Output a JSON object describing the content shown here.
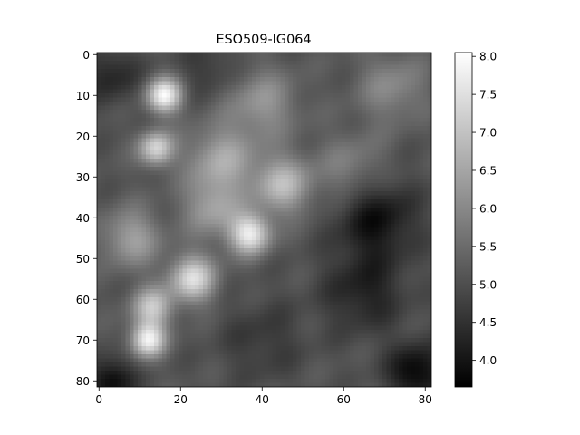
{
  "chart_data": {
    "type": "heatmap",
    "title": "ESO509-IG064",
    "xlabel": "",
    "ylabel": "",
    "grid_size": [
      82,
      82
    ],
    "xlim": [
      -0.5,
      81.5
    ],
    "ylim": [
      81.5,
      -0.5
    ],
    "x_ticks": [
      0,
      20,
      40,
      60,
      80
    ],
    "y_ticks": [
      0,
      10,
      20,
      30,
      40,
      50,
      60,
      70,
      80
    ],
    "x_tick_labels": [
      "0",
      "20",
      "40",
      "60",
      "80"
    ],
    "y_tick_labels": [
      "0",
      "10",
      "20",
      "30",
      "40",
      "50",
      "60",
      "70",
      "80"
    ],
    "colormap": "gray",
    "colorbar": {
      "min": 3.65,
      "max": 8.05,
      "ticks": [
        4.0,
        4.5,
        5.0,
        5.5,
        6.0,
        6.5,
        7.0,
        7.5,
        8.0
      ],
      "tick_labels": [
        "4.0",
        "4.5",
        "5.0",
        "5.5",
        "6.0",
        "6.5",
        "7.0",
        "7.5",
        "8.0"
      ]
    },
    "background_level": 5.1,
    "features": [
      {
        "x": 16,
        "y": 10,
        "sigma": 3.0,
        "value": 7.9
      },
      {
        "x": 14,
        "y": 23,
        "sigma": 3.0,
        "value": 7.3
      },
      {
        "x": 12,
        "y": 70,
        "sigma": 3.0,
        "value": 7.7
      },
      {
        "x": 13,
        "y": 62,
        "sigma": 3.5,
        "value": 7.0
      },
      {
        "x": 23,
        "y": 55,
        "sigma": 4.0,
        "value": 7.4
      },
      {
        "x": 37,
        "y": 44,
        "sigma": 3.5,
        "value": 7.6
      },
      {
        "x": 45,
        "y": 32,
        "sigma": 5.0,
        "value": 6.8
      },
      {
        "x": 30,
        "y": 26,
        "sigma": 6.0,
        "value": 6.5
      },
      {
        "x": 8,
        "y": 45,
        "sigma": 5.0,
        "value": 6.4
      },
      {
        "x": 40,
        "y": 12,
        "sigma": 6.0,
        "value": 6.2
      },
      {
        "x": 72,
        "y": 8,
        "sigma": 6.0,
        "value": 6.0
      },
      {
        "x": 62,
        "y": 28,
        "sigma": 6.0,
        "value": 5.9
      },
      {
        "x": 28,
        "y": 38,
        "sigma": 5.0,
        "value": 6.3
      },
      {
        "x": 68,
        "y": 40,
        "sigma": 7.0,
        "value": 3.9
      },
      {
        "x": 65,
        "y": 58,
        "sigma": 7.0,
        "value": 4.2
      },
      {
        "x": 78,
        "y": 78,
        "sigma": 5.0,
        "value": 3.7
      },
      {
        "x": 3,
        "y": 80,
        "sigma": 4.0,
        "value": 3.8
      },
      {
        "x": 3,
        "y": 5,
        "sigma": 5.0,
        "value": 4.3
      },
      {
        "x": 40,
        "y": 70,
        "sigma": 7.0,
        "value": 4.6
      },
      {
        "x": 27,
        "y": 3,
        "sigma": 5.0,
        "value": 4.6
      }
    ]
  }
}
